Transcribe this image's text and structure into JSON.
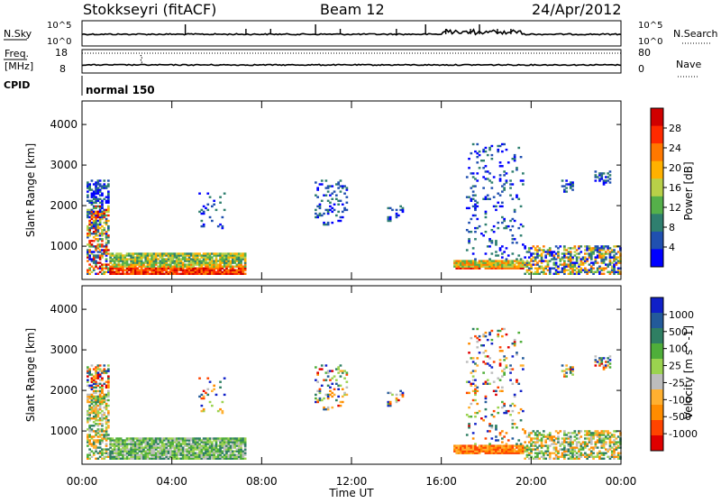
{
  "header": {
    "station": "Stokkseyri (fitACF)",
    "beam": "Beam 12",
    "date": "24/Apr/2012"
  },
  "top_strip": {
    "nsky_label": "N.Sky",
    "nsky_ticks": [
      "10^5",
      "10^0"
    ],
    "nsearch_label": "N.Search",
    "nsearch_ticks": [
      "10^5",
      "10^0"
    ],
    "freq_label": "Freq.",
    "freq_unit": "[MHz]",
    "freq_ticks": [
      "18",
      "8"
    ],
    "nave_label": "Nave",
    "nave_ticks": [
      "80",
      "0"
    ],
    "cpid_label": "CPID",
    "cpid_value": "normal 150"
  },
  "x_axis": {
    "label": "Time UT",
    "ticks": [
      "00:00",
      "04:00",
      "08:00",
      "12:00",
      "16:00",
      "20:00",
      "00:00"
    ]
  },
  "colors": {
    "power": [
      "#0000ff",
      "#2050b0",
      "#2f7f6f",
      "#55b04a",
      "#b8d048",
      "#ffb100",
      "#ff7800",
      "#ff2a00",
      "#d00000"
    ],
    "velocity": [
      "#e00000",
      "#ff4400",
      "#ff8c00",
      "#ffb030",
      "#bdbdbd",
      "#9bd34f",
      "#4fae3a",
      "#2f7f63",
      "#235a9a",
      "#1020c8"
    ]
  },
  "chart_data": [
    {
      "type": "heatmap",
      "title": "Power",
      "xlabel": "Time UT",
      "ylabel": "Slant Range [km]",
      "xlim": [
        0,
        24
      ],
      "ylim": [
        180,
        4580
      ],
      "yticks": [
        "1000",
        "2000",
        "3000",
        "4000"
      ],
      "colorbar_label": "Power [dB]",
      "colorbar_ticks": [
        "4",
        "8",
        "12",
        "16",
        "20",
        "24",
        "28"
      ],
      "colorbar_range": [
        0,
        32
      ],
      "regions": [
        {
          "t": [
            0.2,
            1.2
          ],
          "r": [
            300,
            2600
          ],
          "level": "mixed-high"
        },
        {
          "t": [
            1.2,
            7.3
          ],
          "r": [
            300,
            800
          ],
          "level": "high"
        },
        {
          "t": [
            16.5,
            19.6
          ],
          "r": [
            400,
            650
          ],
          "level": "high"
        },
        {
          "t": [
            17.0,
            19.6
          ],
          "r": [
            600,
            3500
          ],
          "level": "low"
        },
        {
          "t": [
            19.6,
            24.0
          ],
          "r": [
            300,
            1000
          ],
          "level": "mixed"
        }
      ]
    },
    {
      "type": "heatmap",
      "title": "Velocity",
      "xlabel": "Time UT",
      "ylabel": "Slant Range [km]",
      "xlim": [
        0,
        24
      ],
      "ylim": [
        180,
        4580
      ],
      "yticks": [
        "1000",
        "2000",
        "3000",
        "4000"
      ],
      "colorbar_label": "Velocity [m s^-1]",
      "colorbar_ticks": [
        "1000",
        "500",
        "100",
        "25",
        "-25",
        "-100",
        "-500",
        "-1000"
      ],
      "regions": [
        {
          "t": [
            0.2,
            1.2
          ],
          "r": [
            300,
            2600
          ],
          "level": "mixed"
        },
        {
          "t": [
            1.2,
            7.3
          ],
          "r": [
            300,
            800
          ],
          "level": "positive"
        },
        {
          "t": [
            16.5,
            19.6
          ],
          "r": [
            400,
            650
          ],
          "level": "negative"
        },
        {
          "t": [
            17.0,
            19.6
          ],
          "r": [
            600,
            3500
          ],
          "level": "mixed"
        },
        {
          "t": [
            19.6,
            24.0
          ],
          "r": [
            300,
            1000
          ],
          "level": "mixed"
        }
      ]
    }
  ]
}
